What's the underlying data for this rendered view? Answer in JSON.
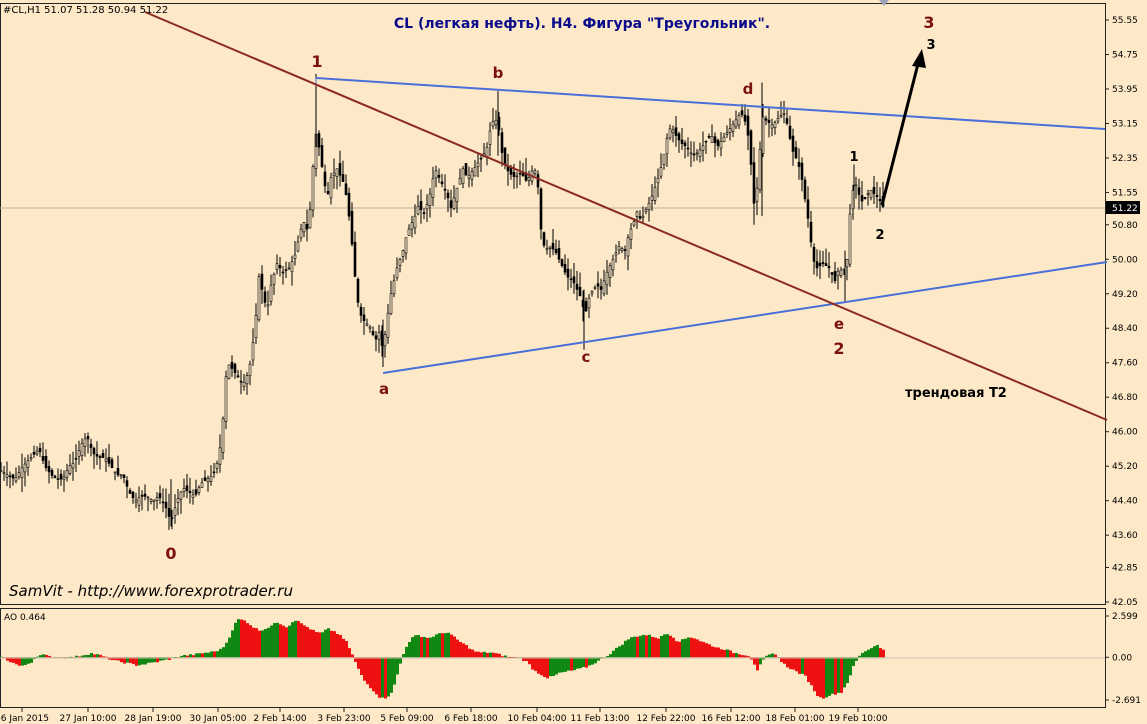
{
  "symbol_info": "#CL,H1  51.07 51.28 50.94 51.22",
  "title": "CL (легкая нефть). H4. Фигура \"Треугольник\".",
  "watermark": "SamVit - http://www.forexprotrader.ru",
  "price_marker": "51.22",
  "trend_label": "трендовая Т2",
  "indicator_label": "AO 0.464",
  "colors": {
    "background": "#fde9c8",
    "candles": "#000000",
    "triangle_lines": "#4a6fd8",
    "trend_line": "#8b2a22",
    "wave_labels": "#7b1010",
    "ao_up": "#118811",
    "ao_down": "#ee1111"
  },
  "chart_data": [
    {
      "type": "candlestick",
      "title": "CL (легкая нефть). H4. Фигура \"Треугольник\".",
      "ylim": [
        42.05,
        55.55
      ],
      "yticks": [
        "55.55",
        "54.75",
        "53.95",
        "53.15",
        "52.35",
        "51.55",
        "50.80",
        "50.00",
        "49.20",
        "48.40",
        "47.60",
        "46.80",
        "46.00",
        "45.20",
        "44.40",
        "43.60",
        "42.85",
        "42.05"
      ],
      "xticks": [
        "26 Jan 2015",
        "27 Jan 10:00",
        "28 Jan 19:00",
        "30 Jan 05:00",
        "2 Feb 14:00",
        "3 Feb 23:00",
        "5 Feb 09:00",
        "6 Feb 18:00",
        "10 Feb 04:00",
        "11 Feb 13:00",
        "12 Feb 22:00",
        "16 Feb 12:00",
        "18 Feb 01:00",
        "19 Feb 10:00"
      ],
      "close_path": [
        [
          0,
          45.1
        ],
        [
          6,
          45.0
        ],
        [
          14,
          44.9
        ],
        [
          22,
          45.2
        ],
        [
          30,
          45.4
        ],
        [
          38,
          45.6
        ],
        [
          44,
          45.2
        ],
        [
          50,
          45.0
        ],
        [
          56,
          44.9
        ],
        [
          62,
          44.9
        ],
        [
          68,
          45.2
        ],
        [
          74,
          45.3
        ],
        [
          80,
          45.7
        ],
        [
          86,
          45.9
        ],
        [
          92,
          45.5
        ],
        [
          98,
          45.4
        ],
        [
          104,
          45.4
        ],
        [
          110,
          45.2
        ],
        [
          116,
          45.0
        ],
        [
          122,
          45.0
        ],
        [
          128,
          44.6
        ],
        [
          134,
          44.4
        ],
        [
          140,
          44.5
        ],
        [
          146,
          44.5
        ],
        [
          152,
          44.4
        ],
        [
          158,
          44.5
        ],
        [
          164,
          44.3
        ],
        [
          170,
          43.9
        ],
        [
          176,
          44.4
        ],
        [
          182,
          44.7
        ],
        [
          188,
          44.6
        ],
        [
          194,
          44.5
        ],
        [
          200,
          44.8
        ],
        [
          206,
          44.9
        ],
        [
          212,
          45.0
        ],
        [
          218,
          45.4
        ],
        [
          222,
          46.3
        ],
        [
          226,
          47.6
        ],
        [
          230,
          47.5
        ],
        [
          236,
          47.3
        ],
        [
          242,
          47.1
        ],
        [
          248,
          47.4
        ],
        [
          254,
          48.4
        ],
        [
          258,
          49.6
        ],
        [
          262,
          49.2
        ],
        [
          266,
          48.8
        ],
        [
          270,
          49.4
        ],
        [
          276,
          49.9
        ],
        [
          282,
          49.7
        ],
        [
          288,
          49.8
        ],
        [
          294,
          50.1
        ],
        [
          298,
          50.5
        ],
        [
          302,
          50.9
        ],
        [
          306,
          50.7
        ],
        [
          310,
          51.3
        ],
        [
          314,
          53.0
        ],
        [
          318,
          52.6
        ],
        [
          322,
          52.0
        ],
        [
          326,
          51.4
        ],
        [
          330,
          51.9
        ],
        [
          336,
          52.1
        ],
        [
          342,
          51.8
        ],
        [
          346,
          51.4
        ],
        [
          350,
          50.6
        ],
        [
          354,
          49.6
        ],
        [
          358,
          48.8
        ],
        [
          362,
          48.6
        ],
        [
          366,
          48.5
        ],
        [
          370,
          48.4
        ],
        [
          374,
          48.1
        ],
        [
          378,
          48.3
        ],
        [
          382,
          47.9
        ],
        [
          386,
          48.6
        ],
        [
          390,
          49.2
        ],
        [
          396,
          49.8
        ],
        [
          402,
          50.2
        ],
        [
          406,
          50.6
        ],
        [
          410,
          50.8
        ],
        [
          414,
          51.0
        ],
        [
          418,
          51.3
        ],
        [
          422,
          51.0
        ],
        [
          428,
          51.4
        ],
        [
          434,
          52.1
        ],
        [
          440,
          51.8
        ],
        [
          446,
          51.5
        ],
        [
          450,
          51.2
        ],
        [
          454,
          51.5
        ],
        [
          458,
          51.8
        ],
        [
          462,
          52.1
        ],
        [
          466,
          51.9
        ],
        [
          470,
          52.0
        ],
        [
          476,
          52.2
        ],
        [
          482,
          52.4
        ],
        [
          486,
          52.6
        ],
        [
          490,
          53.1
        ],
        [
          494,
          53.3
        ],
        [
          498,
          53.0
        ],
        [
          502,
          52.3
        ],
        [
          508,
          52.0
        ],
        [
          514,
          51.9
        ],
        [
          520,
          52.0
        ],
        [
          526,
          51.8
        ],
        [
          532,
          52.1
        ],
        [
          536,
          52.0
        ],
        [
          540,
          50.7
        ],
        [
          544,
          50.2
        ],
        [
          548,
          50.3
        ],
        [
          554,
          50.2
        ],
        [
          560,
          49.9
        ],
        [
          566,
          49.6
        ],
        [
          572,
          49.5
        ],
        [
          576,
          49.3
        ],
        [
          580,
          49.1
        ],
        [
          584,
          48.7
        ],
        [
          588,
          49.1
        ],
        [
          592,
          49.3
        ],
        [
          596,
          49.4
        ],
        [
          600,
          49.3
        ],
        [
          606,
          49.7
        ],
        [
          612,
          50.0
        ],
        [
          618,
          50.3
        ],
        [
          624,
          50.2
        ],
        [
          628,
          50.6
        ],
        [
          632,
          50.8
        ],
        [
          636,
          51.1
        ],
        [
          640,
          50.9
        ],
        [
          646,
          51.2
        ],
        [
          650,
          51.4
        ],
        [
          656,
          51.8
        ],
        [
          662,
          52.3
        ],
        [
          666,
          52.8
        ],
        [
          670,
          53.1
        ],
        [
          674,
          52.9
        ],
        [
          680,
          52.7
        ],
        [
          686,
          52.6
        ],
        [
          692,
          52.4
        ],
        [
          698,
          52.5
        ],
        [
          704,
          52.7
        ],
        [
          710,
          52.9
        ],
        [
          716,
          52.6
        ],
        [
          722,
          52.8
        ],
        [
          728,
          53.0
        ],
        [
          734,
          53.2
        ],
        [
          740,
          53.4
        ],
        [
          746,
          53.1
        ],
        [
          750,
          52.2
        ],
        [
          754,
          51.0
        ],
        [
          758,
          52.3
        ],
        [
          762,
          53.3
        ],
        [
          766,
          53.2
        ],
        [
          772,
          53.1
        ],
        [
          778,
          53.3
        ],
        [
          784,
          53.4
        ],
        [
          788,
          52.9
        ],
        [
          792,
          52.5
        ],
        [
          796,
          52.3
        ],
        [
          800,
          52.0
        ],
        [
          804,
          51.4
        ],
        [
          808,
          50.8
        ],
        [
          812,
          50.0
        ],
        [
          816,
          49.8
        ],
        [
          822,
          49.9
        ],
        [
          828,
          49.8
        ],
        [
          834,
          49.5
        ],
        [
          838,
          49.8
        ],
        [
          842,
          49.7
        ],
        [
          846,
          50.0
        ],
        [
          850,
          51.4
        ],
        [
          854,
          51.8
        ],
        [
          858,
          51.5
        ],
        [
          862,
          51.3
        ],
        [
          866,
          51.5
        ],
        [
          870,
          51.6
        ],
        [
          874,
          51.5
        ],
        [
          878,
          51.4
        ],
        [
          882,
          51.22
        ]
      ]
    },
    {
      "type": "bar",
      "title": "AO 0.464",
      "ylim": [
        -2.691,
        2.599
      ],
      "yticks": [
        "2.599",
        "0.00",
        "-2.691"
      ],
      "x": [
        0,
        20,
        30,
        36,
        42,
        48,
        60,
        72,
        82,
        90,
        100,
        112,
        120,
        128,
        135,
        142,
        155,
        170,
        180,
        190,
        196,
        200,
        206,
        212,
        220,
        226,
        230,
        236,
        244,
        252,
        258,
        264,
        270,
        276,
        280,
        286,
        292,
        296,
        300,
        306,
        314,
        320,
        326,
        334,
        340,
        346,
        350,
        354,
        358,
        362,
        366,
        372,
        378,
        382,
        386,
        390,
        394,
        398,
        404,
        410,
        416,
        422,
        428,
        434,
        440,
        446,
        452,
        458,
        466,
        472,
        478,
        484,
        490,
        496,
        502,
        510,
        518,
        526,
        532,
        540,
        546,
        552,
        558,
        566,
        574,
        580,
        586,
        592,
        598,
        604,
        610,
        616,
        622,
        628,
        634,
        640,
        646,
        652,
        658,
        664,
        670,
        676,
        682,
        688,
        694,
        700,
        708,
        716,
        724,
        732,
        740,
        748,
        752,
        756,
        760,
        764,
        768,
        772,
        776,
        780,
        786,
        792,
        798,
        804,
        810,
        816,
        820,
        824,
        828,
        834,
        840,
        846,
        852,
        858,
        864,
        870,
        876,
        882
      ],
      "values": [
        0.0,
        -0.6,
        -0.3,
        0.1,
        0.15,
        0.05,
        -0.05,
        0.0,
        0.15,
        0.25,
        0.1,
        -0.2,
        -0.3,
        -0.4,
        -0.5,
        -0.45,
        -0.3,
        -0.1,
        0.1,
        0.15,
        0.2,
        0.25,
        0.3,
        0.35,
        0.5,
        1.0,
        1.6,
        2.4,
        2.3,
        1.9,
        1.7,
        1.8,
        2.0,
        2.2,
        2.1,
        1.9,
        2.3,
        2.4,
        2.1,
        1.9,
        1.6,
        1.5,
        1.8,
        1.6,
        1.3,
        0.9,
        0.3,
        -0.3,
        -0.9,
        -1.4,
        -1.7,
        -2.1,
        -2.5,
        -2.6,
        -2.5,
        -2.2,
        -1.6,
        -0.6,
        0.6,
        1.2,
        1.4,
        1.3,
        1.2,
        1.4,
        1.5,
        1.6,
        1.3,
        1.0,
        0.7,
        0.4,
        0.3,
        0.3,
        0.3,
        0.2,
        0.1,
        0.0,
        -0.05,
        -0.3,
        -0.8,
        -1.1,
        -1.3,
        -1.2,
        -1.0,
        -0.9,
        -0.8,
        -0.7,
        -0.6,
        -0.4,
        -0.2,
        0.0,
        0.3,
        0.6,
        0.9,
        1.2,
        1.3,
        1.4,
        1.4,
        1.3,
        1.2,
        1.5,
        1.4,
        1.0,
        1.1,
        1.3,
        1.2,
        1.0,
        0.8,
        0.6,
        0.5,
        0.3,
        0.2,
        0.1,
        -0.3,
        -0.8,
        -0.4,
        0.0,
        0.15,
        0.2,
        0.1,
        -0.3,
        -0.6,
        -0.8,
        -1.0,
        -1.2,
        -1.8,
        -2.4,
        -2.6,
        -2.5,
        -2.4,
        -2.3,
        -2.2,
        -1.6,
        -0.6,
        0.1,
        0.4,
        0.6,
        0.8,
        0.46
      ]
    }
  ],
  "annotations": {
    "wave_0": "0",
    "wave_1_main": "1",
    "wave_a": "a",
    "wave_b": "b",
    "wave_c": "c",
    "wave_d": "d",
    "wave_e": "e",
    "wave_2_main": "2",
    "wave_3_main": "3",
    "wave_1_small": "1",
    "wave_2_small": "2",
    "wave_3_small": "3"
  }
}
